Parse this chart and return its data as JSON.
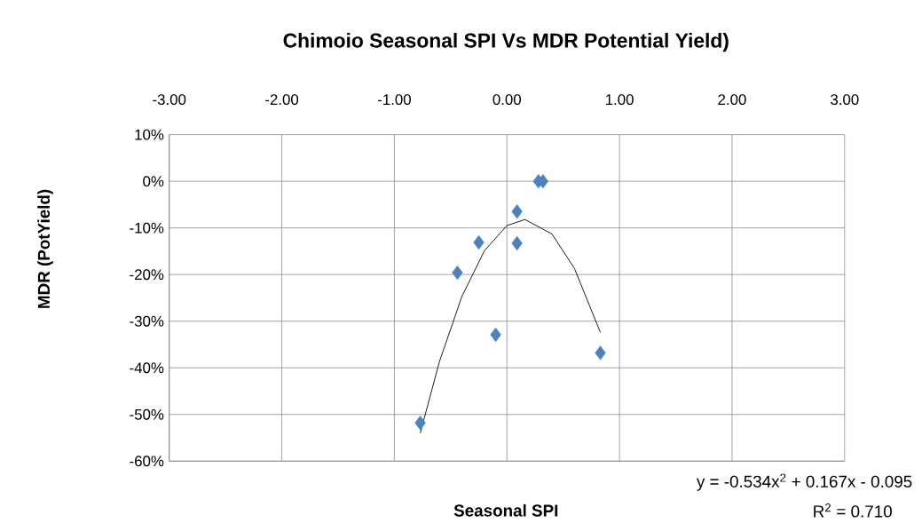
{
  "chart_data": {
    "type": "scatter",
    "title": "Chimoio Seasonal SPI Vs MDR Potential Yield)",
    "xlabel": "Seasonal SPI",
    "ylabel": "MDR (PotYield)",
    "series": [
      {
        "color": "#4f81bd",
        "marker": "diamond",
        "x": [
          0.28,
          0.32,
          0.09,
          0.09,
          -0.25,
          -0.44,
          -0.1,
          0.83,
          -0.77
        ],
        "values": [
          0,
          0,
          -6.5,
          -13.3,
          -13.1,
          -19.6,
          -32.9,
          -36.8,
          -51.8
        ]
      },
      {
        "type": "line",
        "color": "#000000",
        "marker": "none",
        "x": [
          -0.77,
          -0.6,
          -0.4,
          -0.2,
          0,
          0.16,
          0.4,
          0.6,
          0.83
        ],
        "values": [
          -54,
          -38.7,
          -24.7,
          -14.9,
          -9.5,
          -8.2,
          -11.3,
          -18.7,
          -32.4
        ]
      }
    ],
    "xlim": [
      -3,
      3
    ],
    "ylim": [
      -60,
      10
    ],
    "xticks": [
      {
        "value": -3,
        "label": "-3.00"
      },
      {
        "value": -2,
        "label": "-2.00"
      },
      {
        "value": -1,
        "label": "-1.00"
      },
      {
        "value": 0,
        "label": "0.00"
      },
      {
        "value": 1,
        "label": "1.00"
      },
      {
        "value": 2,
        "label": "2.00"
      },
      {
        "value": 3,
        "label": "3.00"
      }
    ],
    "yticks": [
      {
        "value": 10,
        "label": "10%"
      },
      {
        "value": 0,
        "label": "0%"
      },
      {
        "value": -10,
        "label": "-10%"
      },
      {
        "value": -20,
        "label": "-20%"
      },
      {
        "value": -30,
        "label": "-30%"
      },
      {
        "value": -40,
        "label": "-40%"
      },
      {
        "value": -50,
        "label": "-50%"
      },
      {
        "value": -60,
        "label": "-60%"
      }
    ],
    "grid": true,
    "annotations": [
      "y = -0.534x$^{2}$ + 0.167x - 0.095",
      "R$^{2}$ = 0.710"
    ]
  }
}
